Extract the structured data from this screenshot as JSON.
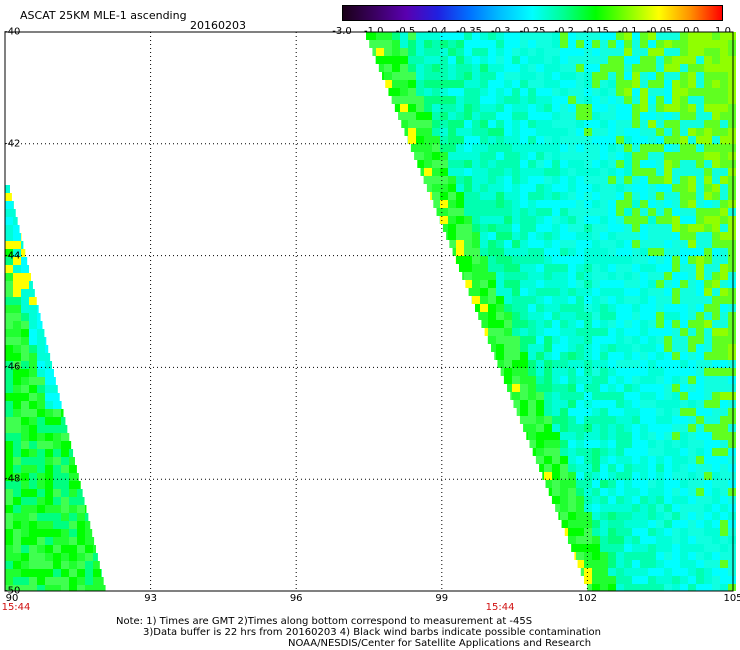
{
  "header": {
    "title": "ASCAT 25KM MLE-1 ascending",
    "date": "20160203"
  },
  "colorbar": {
    "labels": [
      "-3.0",
      "-1.0",
      "-0.5",
      "-0.4",
      "-0.35",
      "-0.3",
      "-0.25",
      "-0.2",
      "-0.15",
      "-0.1",
      "-0.05",
      "0.0",
      "1.0"
    ],
    "colors": [
      "#1a0018",
      "#3a0060",
      "#5a00b0",
      "#2020e0",
      "#0070ff",
      "#00c0ff",
      "#00ffff",
      "#00ff90",
      "#00ff00",
      "#80ff00",
      "#ffff00",
      "#ff9000",
      "#ff0000"
    ]
  },
  "map": {
    "lon_ticks": [
      "90",
      "93",
      "96",
      "99",
      "102",
      "105"
    ],
    "lat_ticks": [
      "-40",
      "-42",
      "-44",
      "-46",
      "-48",
      "-50"
    ],
    "lon_range": [
      90,
      105
    ],
    "lat_range": [
      -40,
      -50
    ],
    "time_labels": [
      {
        "text": "15:44",
        "lon": 90
      },
      {
        "text": "15:44",
        "lon": 100.2
      }
    ]
  },
  "notes": {
    "line1": "Note: 1) Times are GMT 2)Times along bottom correspond to measurement at -45S",
    "line2": "3)Data buffer is 22 hrs from 20160203 4) Black wind barbs indicate possible contamination",
    "line3": "NOAA/NESDIS/Center for Satellite Applications and Research"
  }
}
